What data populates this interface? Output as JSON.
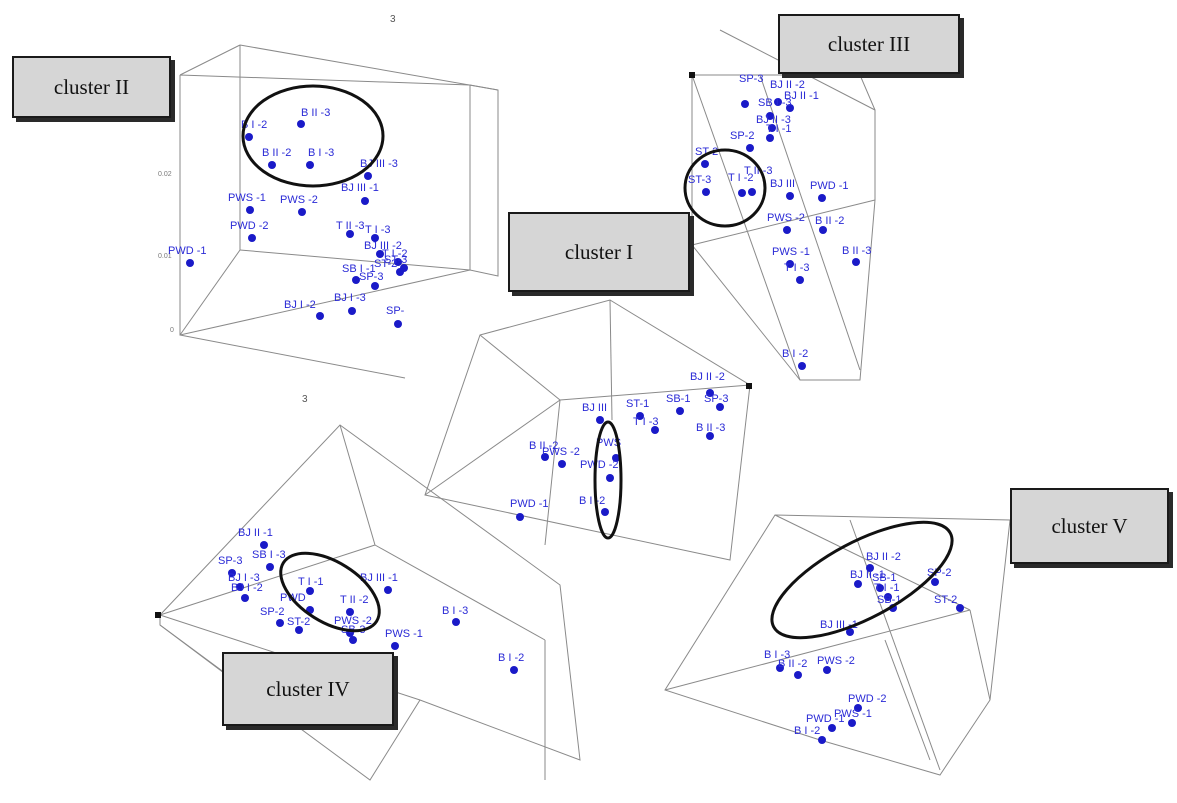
{
  "clusters": {
    "c1": "cluster I",
    "c2": "cluster II",
    "c3": "cluster III",
    "c4": "cluster IV",
    "c5": "cluster V"
  },
  "axis_labels": {
    "p1_top": "3",
    "p1_bottom": "3"
  },
  "colors": {
    "point": "#1a1ac8",
    "label": "#2a2ad6",
    "frame": "#8a8a8a",
    "box_fill": "#d6d6d6"
  },
  "chart_data": [
    {
      "type": "scatter",
      "panel": "top-left",
      "ticks": {
        "z": [
          "0.02",
          "0.01",
          "0"
        ]
      },
      "points": [
        "B II -3",
        "B I -2",
        "B II -2",
        "B I -3",
        "BJ III -3",
        "BJ III -1",
        "PWS -1",
        "PWS -2",
        "PWD -2",
        "PWD -1",
        "T II -3",
        "T I -3",
        "BJ III -2",
        "T I -2",
        "ST-3",
        "SB I -1",
        "ST-2",
        "SP-3",
        "BJ I -3",
        "BJ I -2",
        "SP-"
      ]
    },
    {
      "type": "scatter",
      "panel": "top-right",
      "points": [
        "SP-3",
        "BJ II -2",
        "BJ II -1",
        "SB I -3",
        "BJ II -3",
        "SP-2",
        "T I -1",
        "ST-2",
        "ST-3",
        "T I -2",
        "T II -3",
        "BJ III",
        "PWD -1",
        "PWS -2",
        "B II -2",
        "PWS -1",
        "B II -3",
        "T I -3",
        "B I -2"
      ]
    },
    {
      "type": "scatter",
      "panel": "center",
      "points": [
        "BJ II -2",
        "SP-3",
        "BJ III",
        "ST-1",
        "SB-1",
        "T I -3",
        "B II -3",
        "B II -2",
        "PWS -2",
        "PWS",
        "PWD -2",
        "B I -2",
        "PWD -1"
      ]
    },
    {
      "type": "scatter",
      "panel": "bottom-left",
      "points": [
        "BJ II -1",
        "SB I -3",
        "SP-3",
        "BJ I -3",
        "BJ I -2",
        "T I -1",
        "BJ III -1",
        "PWD",
        "T II -2",
        "PWS -2",
        "SP-2",
        "ST-2",
        "SB-3",
        "PWS -1",
        "B I -3",
        "B I -2"
      ]
    },
    {
      "type": "scatter",
      "panel": "bottom-right",
      "points": [
        "BJ II -2",
        "BJ II -1",
        "SP-2",
        "SB-1",
        "T I -1",
        "SB-1",
        "ST-2",
        "BJ III -1",
        "B I -3",
        "B II -2",
        "PWS -2",
        "PWD -2",
        "PWS -1",
        "PWD -1",
        "B I -2"
      ]
    }
  ]
}
